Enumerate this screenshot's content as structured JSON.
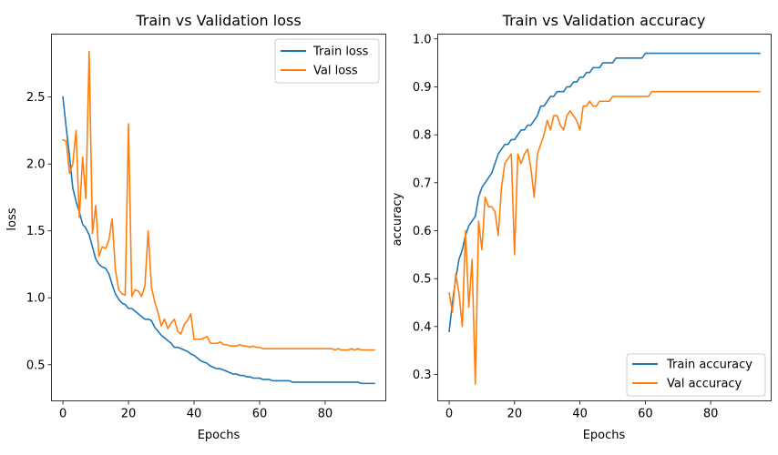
{
  "colors": {
    "train": "#1f77b4",
    "val": "#ff7f0e"
  },
  "chart_data": [
    {
      "type": "line",
      "title": "Train vs Validation loss",
      "xlabel": "Epochs",
      "ylabel": "loss",
      "xlim": [
        -3.5,
        98.5
      ],
      "ylim": [
        0.23,
        2.97
      ],
      "xticks": [
        0,
        20,
        40,
        60,
        80
      ],
      "yticks": [
        0.5,
        1.0,
        1.5,
        2.0,
        2.5
      ],
      "yticklabels": [
        "0.5",
        "1.0",
        "1.5",
        "2.0",
        "2.5"
      ],
      "grid": false,
      "legend": "top-right",
      "series": [
        {
          "name": "Train loss",
          "color": "#1f77b4",
          "values": [
            2.5,
            2.27,
            2.06,
            1.82,
            1.72,
            1.64,
            1.55,
            1.52,
            1.47,
            1.38,
            1.29,
            1.25,
            1.23,
            1.22,
            1.18,
            1.1,
            1.03,
            0.99,
            0.96,
            0.95,
            0.92,
            0.92,
            0.9,
            0.88,
            0.86,
            0.84,
            0.84,
            0.83,
            0.78,
            0.75,
            0.72,
            0.7,
            0.68,
            0.66,
            0.63,
            0.63,
            0.62,
            0.61,
            0.6,
            0.58,
            0.57,
            0.55,
            0.53,
            0.52,
            0.51,
            0.49,
            0.48,
            0.47,
            0.47,
            0.46,
            0.45,
            0.44,
            0.43,
            0.43,
            0.42,
            0.42,
            0.41,
            0.41,
            0.4,
            0.4,
            0.4,
            0.39,
            0.39,
            0.39,
            0.38,
            0.38,
            0.38,
            0.38,
            0.38,
            0.38,
            0.37,
            0.37,
            0.37,
            0.37,
            0.37,
            0.37,
            0.37,
            0.37,
            0.37,
            0.37,
            0.37,
            0.37,
            0.37,
            0.37,
            0.37,
            0.37,
            0.37,
            0.37,
            0.37,
            0.37,
            0.37,
            0.36,
            0.36,
            0.36,
            0.36,
            0.36
          ]
        },
        {
          "name": "Val loss",
          "color": "#ff7f0e",
          "values": [
            2.18,
            2.17,
            1.93,
            2.0,
            2.25,
            1.6,
            2.05,
            1.74,
            2.84,
            1.48,
            1.69,
            1.31,
            1.38,
            1.37,
            1.43,
            1.59,
            1.21,
            1.06,
            1.03,
            1.02,
            2.3,
            1.01,
            1.06,
            1.05,
            1.01,
            1.09,
            1.5,
            1.08,
            0.97,
            0.89,
            0.79,
            0.84,
            0.77,
            0.81,
            0.84,
            0.75,
            0.73,
            0.8,
            0.83,
            0.88,
            0.69,
            0.69,
            0.69,
            0.7,
            0.71,
            0.66,
            0.66,
            0.66,
            0.67,
            0.65,
            0.65,
            0.64,
            0.64,
            0.64,
            0.65,
            0.64,
            0.64,
            0.63,
            0.64,
            0.63,
            0.63,
            0.62,
            0.62,
            0.62,
            0.62,
            0.62,
            0.62,
            0.62,
            0.62,
            0.62,
            0.62,
            0.62,
            0.62,
            0.62,
            0.62,
            0.62,
            0.62,
            0.62,
            0.62,
            0.62,
            0.62,
            0.62,
            0.62,
            0.61,
            0.62,
            0.61,
            0.61,
            0.61,
            0.62,
            0.61,
            0.62,
            0.61,
            0.61,
            0.61,
            0.61,
            0.61
          ]
        }
      ]
    },
    {
      "type": "line",
      "title": "Train vs Validation accuracy",
      "xlabel": "Epochs",
      "ylabel": "accuracy",
      "xlim": [
        -3.5,
        98.5
      ],
      "ylim": [
        0.245,
        1.01
      ],
      "xticks": [
        0,
        20,
        40,
        60,
        80
      ],
      "yticks": [
        0.3,
        0.4,
        0.5,
        0.6,
        0.7,
        0.8,
        0.9,
        1.0
      ],
      "yticklabels": [
        "0.3",
        "0.4",
        "0.5",
        "0.6",
        "0.7",
        "0.8",
        "0.9",
        "1.0"
      ],
      "grid": false,
      "legend": "bottom-right",
      "series": [
        {
          "name": "Train accuracy",
          "color": "#1f77b4",
          "values": [
            0.39,
            0.45,
            0.5,
            0.54,
            0.56,
            0.59,
            0.61,
            0.62,
            0.63,
            0.67,
            0.69,
            0.7,
            0.71,
            0.72,
            0.74,
            0.76,
            0.77,
            0.78,
            0.78,
            0.79,
            0.79,
            0.8,
            0.81,
            0.81,
            0.82,
            0.82,
            0.83,
            0.84,
            0.86,
            0.86,
            0.87,
            0.88,
            0.88,
            0.89,
            0.89,
            0.89,
            0.9,
            0.9,
            0.91,
            0.91,
            0.92,
            0.92,
            0.93,
            0.93,
            0.94,
            0.94,
            0.94,
            0.95,
            0.95,
            0.95,
            0.95,
            0.96,
            0.96,
            0.96,
            0.96,
            0.96,
            0.96,
            0.96,
            0.96,
            0.96,
            0.97,
            0.97,
            0.97,
            0.97,
            0.97,
            0.97,
            0.97,
            0.97,
            0.97,
            0.97,
            0.97,
            0.97,
            0.97,
            0.97,
            0.97,
            0.97,
            0.97,
            0.97,
            0.97,
            0.97,
            0.97,
            0.97,
            0.97,
            0.97,
            0.97,
            0.97,
            0.97,
            0.97,
            0.97,
            0.97,
            0.97,
            0.97,
            0.97,
            0.97,
            0.97,
            0.97
          ]
        },
        {
          "name": "Val accuracy",
          "color": "#ff7f0e",
          "values": [
            0.47,
            0.43,
            0.51,
            0.47,
            0.4,
            0.6,
            0.44,
            0.54,
            0.28,
            0.62,
            0.56,
            0.67,
            0.65,
            0.65,
            0.64,
            0.59,
            0.69,
            0.74,
            0.75,
            0.76,
            0.55,
            0.76,
            0.74,
            0.76,
            0.77,
            0.73,
            0.67,
            0.76,
            0.78,
            0.8,
            0.83,
            0.81,
            0.84,
            0.84,
            0.82,
            0.81,
            0.84,
            0.85,
            0.84,
            0.83,
            0.81,
            0.86,
            0.86,
            0.87,
            0.86,
            0.86,
            0.87,
            0.87,
            0.87,
            0.87,
            0.88,
            0.88,
            0.88,
            0.88,
            0.88,
            0.88,
            0.88,
            0.88,
            0.88,
            0.88,
            0.88,
            0.88,
            0.89,
            0.89,
            0.89,
            0.89,
            0.89,
            0.89,
            0.89,
            0.89,
            0.89,
            0.89,
            0.89,
            0.89,
            0.89,
            0.89,
            0.89,
            0.89,
            0.89,
            0.89,
            0.89,
            0.89,
            0.89,
            0.89,
            0.89,
            0.89,
            0.89,
            0.89,
            0.89,
            0.89,
            0.89,
            0.89,
            0.89,
            0.89,
            0.89,
            0.89
          ]
        }
      ]
    }
  ]
}
